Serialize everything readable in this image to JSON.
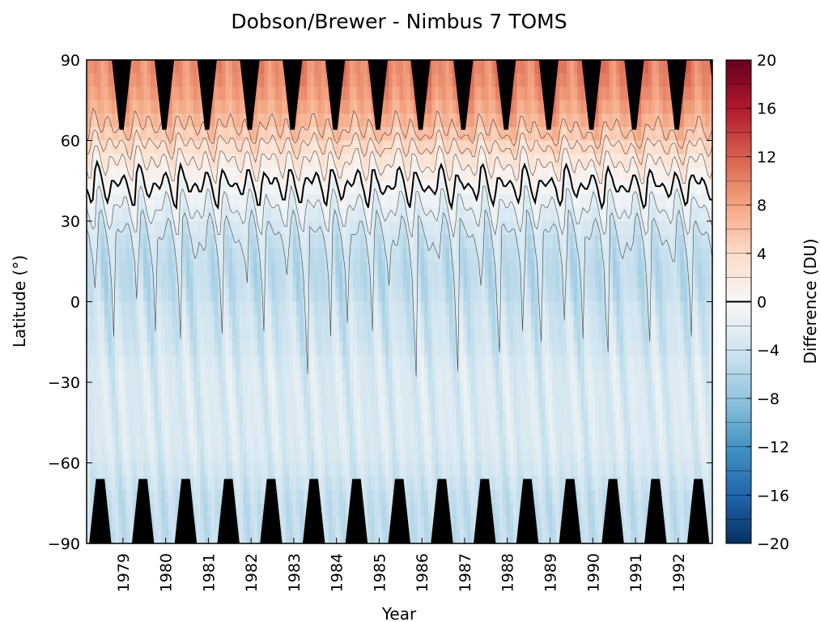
{
  "chart_data": {
    "type": "heatmap",
    "title": "Dobson/Brewer - Nimbus 7 TOMS",
    "xlabel": "Year",
    "ylabel": "Latitude (°)",
    "x_tick_labels": [
      "1979",
      "1980",
      "1981",
      "1982",
      "1983",
      "1984",
      "1985",
      "1986",
      "1987",
      "1988",
      "1989",
      "1990",
      "1991",
      "1992"
    ],
    "x_tick_positions": [
      1979.0,
      1980.0,
      1981.0,
      1982.0,
      1983.0,
      1984.0,
      1985.0,
      1986.0,
      1987.0,
      1988.0,
      1989.0,
      1990.0,
      1991.0,
      1992.0
    ],
    "xlim": [
      1978.15,
      1992.8
    ],
    "ylim": [
      -90,
      90
    ],
    "y_ticks": [
      90,
      60,
      30,
      0,
      -30,
      -60,
      -90
    ],
    "y_tick_labels": [
      "90",
      "60",
      "30",
      "0",
      "−30",
      "−60",
      "−90"
    ],
    "colorbar": {
      "label": "Difference (DU)",
      "range": [
        -20,
        20
      ],
      "ticks": [
        20,
        16,
        12,
        8,
        4,
        0,
        -4,
        -8,
        -12,
        -16,
        -20
      ],
      "tick_labels": [
        "20",
        "16",
        "12",
        "8",
        "4",
        "0",
        "−4",
        "−8",
        "−12",
        "−16",
        "−20"
      ],
      "colormap": "RdBu_r",
      "colors": [
        "#053061",
        "#2166ac",
        "#4393c3",
        "#92c5de",
        "#d1e5f0",
        "#f7f7f7",
        "#fddbc7",
        "#f4a582",
        "#d6604d",
        "#b2182b",
        "#67001f"
      ]
    },
    "contour_levels": [
      -20,
      -18,
      -16,
      -14,
      -12,
      -10,
      -8,
      -6,
      -4,
      -2,
      0,
      2,
      4,
      6,
      8,
      10,
      12,
      14,
      16,
      18,
      20
    ],
    "zero_contour_bold": true,
    "missing_data_color": "#000000",
    "missing_data_regions": "polar night (high latitudes, seasonal)",
    "values": {
      "lat": [
        85,
        75,
        65,
        55,
        45,
        35,
        25,
        15,
        5,
        -5,
        -15,
        -25,
        -35,
        -45,
        -55,
        -65,
        -75,
        -85
      ],
      "description_units": "DU",
      "mean_difference_by_lat": [
        8,
        7,
        5,
        2,
        0,
        -2,
        -4,
        -5,
        -5,
        -4,
        -4,
        -3,
        -3,
        -3,
        -3,
        -4,
        -5,
        -5
      ]
    }
  }
}
